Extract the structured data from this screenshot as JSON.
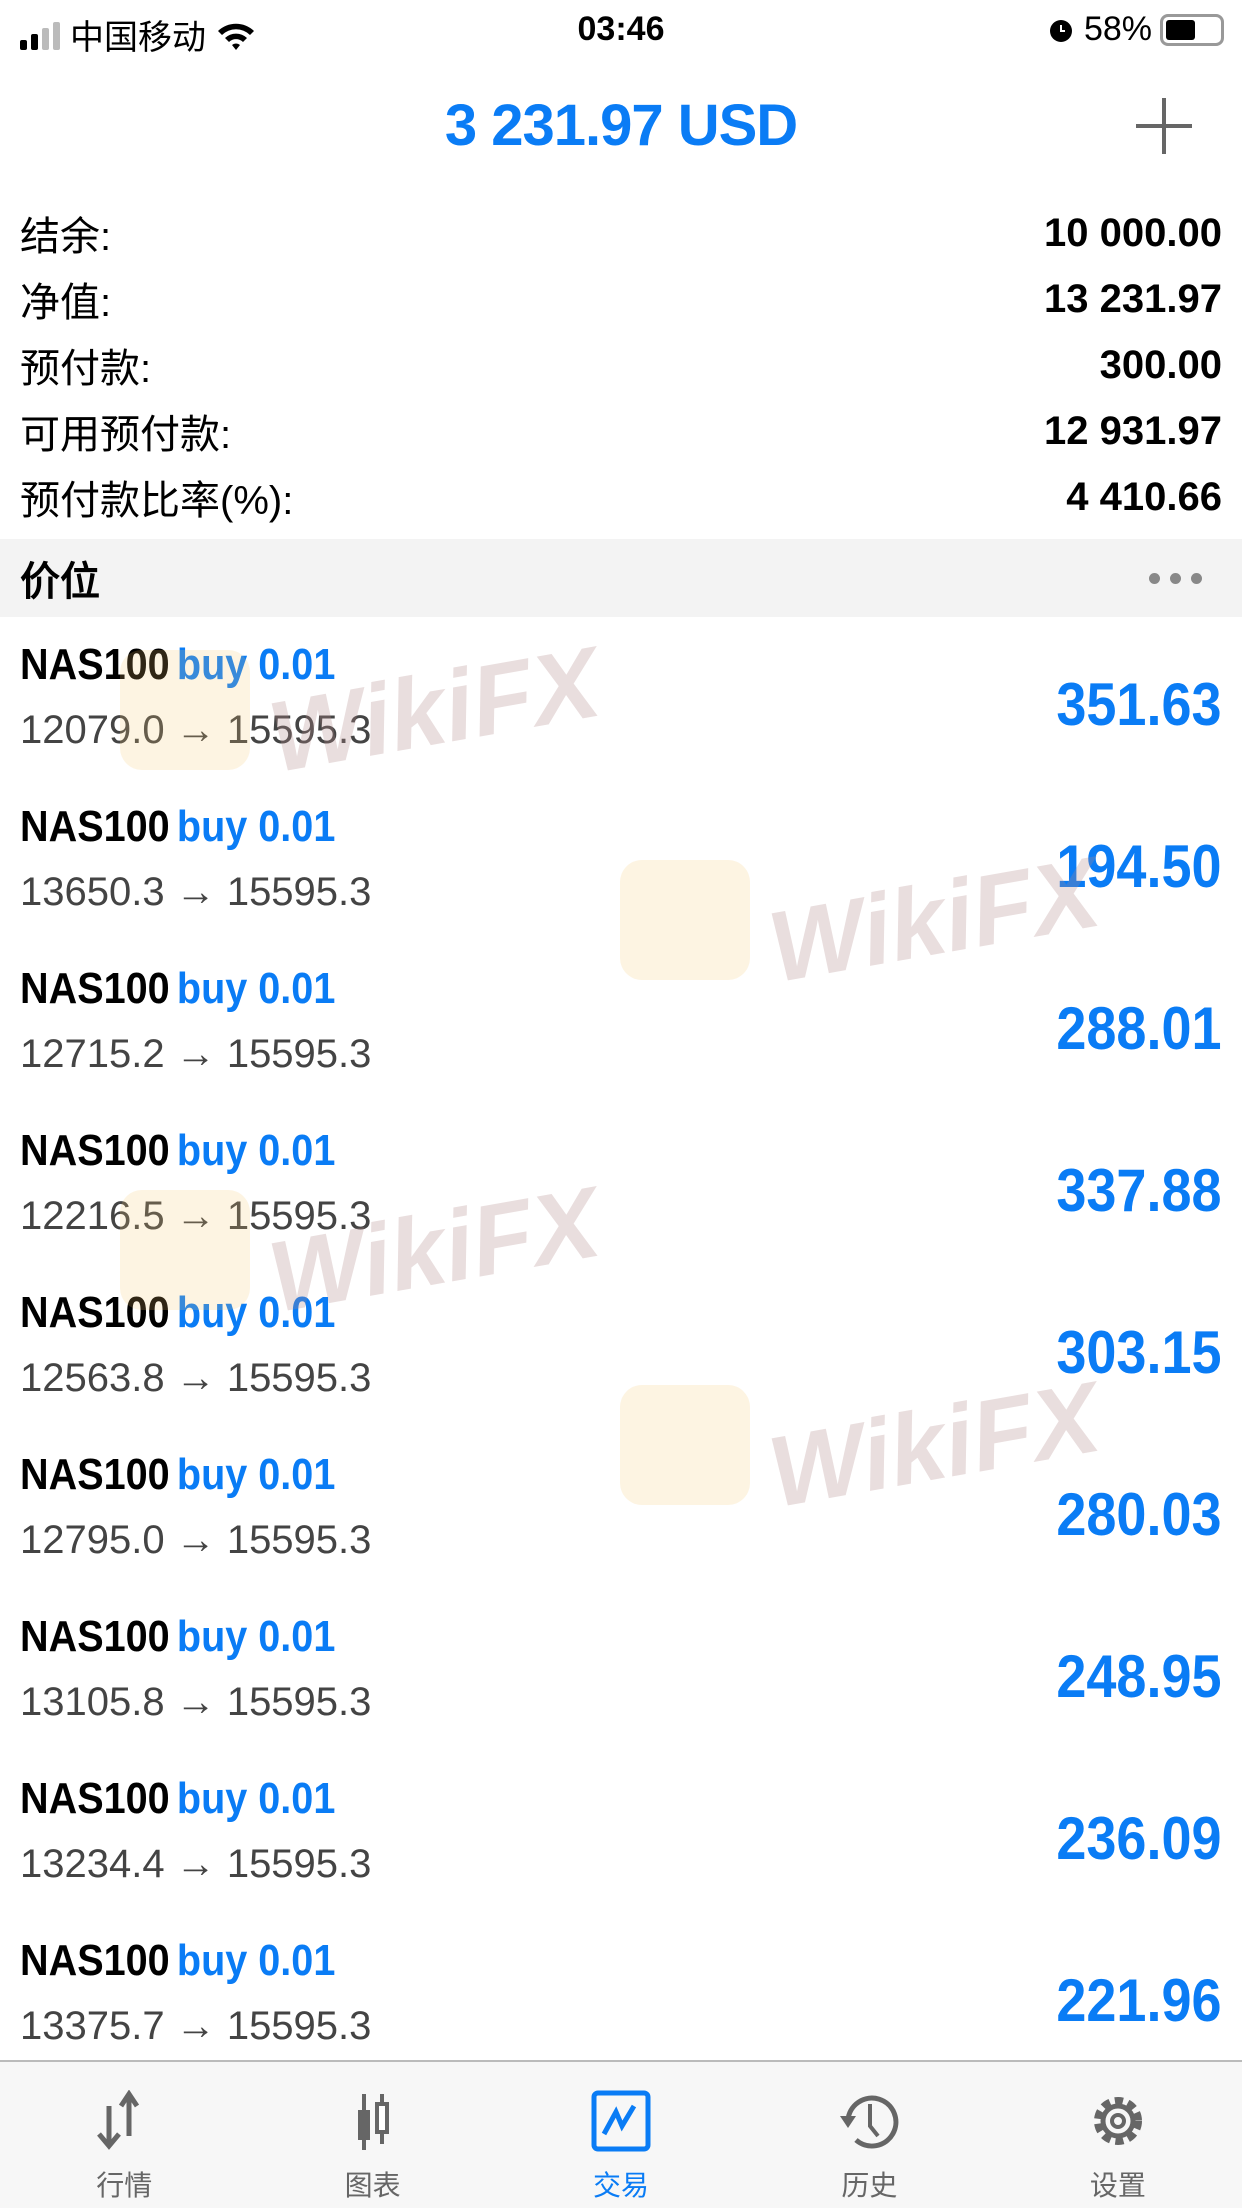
{
  "status_bar": {
    "carrier": "中国移动",
    "time": "03:46",
    "battery": "58%",
    "battery_level": 0.58
  },
  "header": {
    "title": "3 231.97 USD",
    "add_icon": "plus-icon"
  },
  "summary": [
    {
      "label": "结余:",
      "value": "10 000.00"
    },
    {
      "label": "净值:",
      "value": "13 231.97"
    },
    {
      "label": "预付款:",
      "value": "300.00"
    },
    {
      "label": "可用预付款:",
      "value": "12 931.97"
    },
    {
      "label": "预付款比率(%):",
      "value": "4 410.66"
    }
  ],
  "section": {
    "title": "价位",
    "menu_icon": "more-dots-icon"
  },
  "positions": [
    {
      "symbol": "NAS100",
      "type": "buy 0.01",
      "prices": "12079.0 → 15595.3",
      "profit": "351.63"
    },
    {
      "symbol": "NAS100",
      "type": "buy 0.01",
      "prices": "13650.3 → 15595.3",
      "profit": "194.50"
    },
    {
      "symbol": "NAS100",
      "type": "buy 0.01",
      "prices": "12715.2 → 15595.3",
      "profit": "288.01"
    },
    {
      "symbol": "NAS100",
      "type": "buy 0.01",
      "prices": "12216.5 → 15595.3",
      "profit": "337.88"
    },
    {
      "symbol": "NAS100",
      "type": "buy 0.01",
      "prices": "12563.8 → 15595.3",
      "profit": "303.15"
    },
    {
      "symbol": "NAS100",
      "type": "buy 0.01",
      "prices": "12795.0 → 15595.3",
      "profit": "280.03"
    },
    {
      "symbol": "NAS100",
      "type": "buy 0.01",
      "prices": "13105.8 → 15595.3",
      "profit": "248.95"
    },
    {
      "symbol": "NAS100",
      "type": "buy 0.01",
      "prices": "13234.4 → 15595.3",
      "profit": "236.09"
    },
    {
      "symbol": "NAS100",
      "type": "buy 0.01",
      "prices": "13375.7 → 15595.3",
      "profit": "221.96"
    }
  ],
  "watermark": "WikiFX",
  "tabs": [
    {
      "label": "行情",
      "icon": "quotes-arrows-icon"
    },
    {
      "label": "图表",
      "icon": "candlestick-chart-icon"
    },
    {
      "label": "交易",
      "icon": "trade-chart-icon",
      "active": true
    },
    {
      "label": "历史",
      "icon": "history-clock-icon"
    },
    {
      "label": "设置",
      "icon": "settings-gear-icon"
    }
  ],
  "colors": {
    "accent": "#0a7cf5",
    "icon_gray": "#666666"
  }
}
